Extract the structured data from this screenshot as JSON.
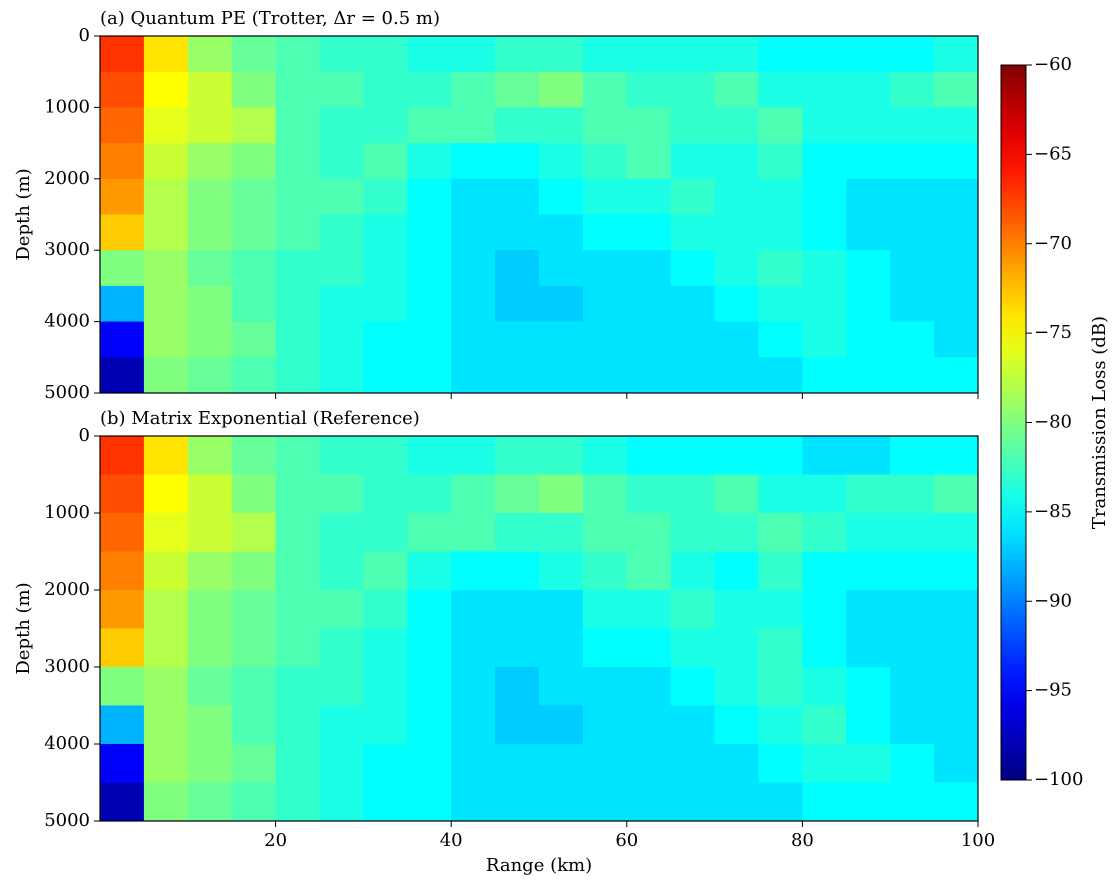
{
  "chart_data": [
    {
      "type": "heatmap",
      "title": "(a) Quantum PE (Trotter, Δr = 0.5 m)",
      "ylabel": "Depth (m)",
      "xlim": [
        0,
        100
      ],
      "ylim": [
        0,
        5000
      ],
      "y_inverted": true,
      "xticks": [
        20,
        40,
        60,
        80,
        100
      ],
      "yticks": [
        0,
        1000,
        2000,
        3000,
        4000,
        5000
      ],
      "show_xtick_labels": false,
      "colormap": "jet",
      "x_edges": [
        0,
        5,
        10,
        15,
        20,
        25,
        30,
        35,
        40,
        45,
        50,
        55,
        60,
        65,
        70,
        75,
        80,
        85,
        90,
        95,
        100
      ],
      "y_edges": [
        0,
        500,
        1000,
        1500,
        2000,
        2500,
        3000,
        3500,
        4000,
        4500,
        5000
      ],
      "z": [
        [
          -67,
          -74,
          -79,
          -81,
          -82,
          -83,
          -83,
          -84,
          -84,
          -83,
          -83,
          -84,
          -84,
          -84,
          -84,
          -85,
          -85,
          -85,
          -85,
          -84
        ],
        [
          -68,
          -75,
          -77,
          -80,
          -82,
          -82,
          -83,
          -83,
          -82,
          -81,
          -80,
          -82,
          -83,
          -83,
          -82,
          -84,
          -84,
          -84,
          -83,
          -82
        ],
        [
          -69,
          -76,
          -77,
          -78,
          -82,
          -83,
          -83,
          -82,
          -82,
          -83,
          -83,
          -82,
          -82,
          -83,
          -83,
          -82,
          -84,
          -84,
          -84,
          -84
        ],
        [
          -70,
          -77,
          -79,
          -80,
          -82,
          -83,
          -82,
          -84,
          -85,
          -85,
          -84,
          -83,
          -82,
          -84,
          -84,
          -83,
          -85,
          -85,
          -85,
          -85
        ],
        [
          -71,
          -78,
          -80,
          -81,
          -82,
          -82,
          -83,
          -85,
          -86,
          -86,
          -85,
          -84,
          -84,
          -83,
          -84,
          -84,
          -85,
          -86,
          -86,
          -86
        ],
        [
          -73,
          -78,
          -80,
          -81,
          -82,
          -83,
          -84,
          -85,
          -86,
          -86,
          -86,
          -85,
          -85,
          -84,
          -84,
          -84,
          -85,
          -86,
          -86,
          -86
        ],
        [
          -80,
          -79,
          -81,
          -82,
          -83,
          -83,
          -84,
          -85,
          -86,
          -87,
          -86,
          -86,
          -86,
          -85,
          -84,
          -83,
          -84,
          -85,
          -86,
          -86
        ],
        [
          -88,
          -79,
          -80,
          -82,
          -83,
          -84,
          -84,
          -85,
          -86,
          -87,
          -87,
          -86,
          -86,
          -86,
          -85,
          -84,
          -84,
          -85,
          -86,
          -86
        ],
        [
          -95,
          -79,
          -80,
          -81,
          -83,
          -84,
          -85,
          -85,
          -86,
          -86,
          -86,
          -86,
          -86,
          -86,
          -86,
          -85,
          -84,
          -85,
          -85,
          -86
        ],
        [
          -98,
          -80,
          -81,
          -82,
          -83,
          -84,
          -85,
          -85,
          -86,
          -86,
          -86,
          -86,
          -86,
          -86,
          -86,
          -86,
          -85,
          -85,
          -85,
          -85
        ]
      ]
    },
    {
      "type": "heatmap",
      "title": "(b) Matrix Exponential (Reference)",
      "ylabel": "Depth (m)",
      "xlabel": "Range (km)",
      "xlim": [
        0,
        100
      ],
      "ylim": [
        0,
        5000
      ],
      "y_inverted": true,
      "xticks": [
        20,
        40,
        60,
        80,
        100
      ],
      "yticks": [
        0,
        1000,
        2000,
        3000,
        4000,
        5000
      ],
      "show_xtick_labels": true,
      "colormap": "jet",
      "x_edges": [
        0,
        5,
        10,
        15,
        20,
        25,
        30,
        35,
        40,
        45,
        50,
        55,
        60,
        65,
        70,
        75,
        80,
        85,
        90,
        95,
        100
      ],
      "y_edges": [
        0,
        500,
        1000,
        1500,
        2000,
        2500,
        3000,
        3500,
        4000,
        4500,
        5000
      ],
      "z": [
        [
          -67,
          -74,
          -79,
          -81,
          -82,
          -83,
          -83,
          -84,
          -84,
          -83,
          -83,
          -84,
          -85,
          -85,
          -85,
          -85,
          -86,
          -86,
          -85,
          -85
        ],
        [
          -68,
          -75,
          -77,
          -80,
          -82,
          -82,
          -83,
          -83,
          -82,
          -81,
          -80,
          -82,
          -83,
          -83,
          -82,
          -84,
          -84,
          -83,
          -83,
          -82
        ],
        [
          -69,
          -76,
          -77,
          -78,
          -82,
          -83,
          -83,
          -82,
          -82,
          -83,
          -83,
          -82,
          -82,
          -83,
          -83,
          -82,
          -83,
          -84,
          -84,
          -84
        ],
        [
          -70,
          -77,
          -79,
          -80,
          -82,
          -83,
          -82,
          -84,
          -85,
          -85,
          -84,
          -83,
          -82,
          -84,
          -85,
          -83,
          -85,
          -85,
          -85,
          -85
        ],
        [
          -71,
          -78,
          -80,
          -81,
          -82,
          -82,
          -83,
          -85,
          -86,
          -86,
          -86,
          -84,
          -84,
          -83,
          -84,
          -84,
          -85,
          -86,
          -86,
          -86
        ],
        [
          -73,
          -78,
          -80,
          -81,
          -82,
          -83,
          -84,
          -85,
          -86,
          -86,
          -86,
          -85,
          -85,
          -84,
          -84,
          -83,
          -85,
          -86,
          -86,
          -86
        ],
        [
          -80,
          -79,
          -81,
          -82,
          -83,
          -83,
          -84,
          -85,
          -86,
          -87,
          -86,
          -86,
          -86,
          -85,
          -84,
          -83,
          -84,
          -85,
          -86,
          -86
        ],
        [
          -88,
          -79,
          -80,
          -82,
          -83,
          -84,
          -84,
          -85,
          -86,
          -87,
          -87,
          -86,
          -86,
          -86,
          -85,
          -84,
          -83,
          -85,
          -86,
          -86
        ],
        [
          -95,
          -79,
          -80,
          -81,
          -83,
          -84,
          -85,
          -85,
          -86,
          -86,
          -86,
          -86,
          -86,
          -86,
          -86,
          -85,
          -84,
          -84,
          -85,
          -86
        ],
        [
          -98,
          -80,
          -81,
          -82,
          -83,
          -84,
          -85,
          -85,
          -86,
          -86,
          -86,
          -86,
          -86,
          -86,
          -86,
          -86,
          -85,
          -85,
          -85,
          -85
        ]
      ]
    }
  ],
  "colorbar": {
    "label": "Transmission Loss (dB)",
    "colormap": "jet",
    "lim": [
      -100,
      -60
    ],
    "ticks": [
      {
        "value": -60,
        "label": "−60"
      },
      {
        "value": -65,
        "label": "−65"
      },
      {
        "value": -70,
        "label": "−70"
      },
      {
        "value": -75,
        "label": "−75"
      },
      {
        "value": -80,
        "label": "−80"
      },
      {
        "value": -85,
        "label": "−85"
      },
      {
        "value": -90,
        "label": "−90"
      },
      {
        "value": -95,
        "label": "−95"
      },
      {
        "value": -100,
        "label": "−100"
      }
    ]
  }
}
